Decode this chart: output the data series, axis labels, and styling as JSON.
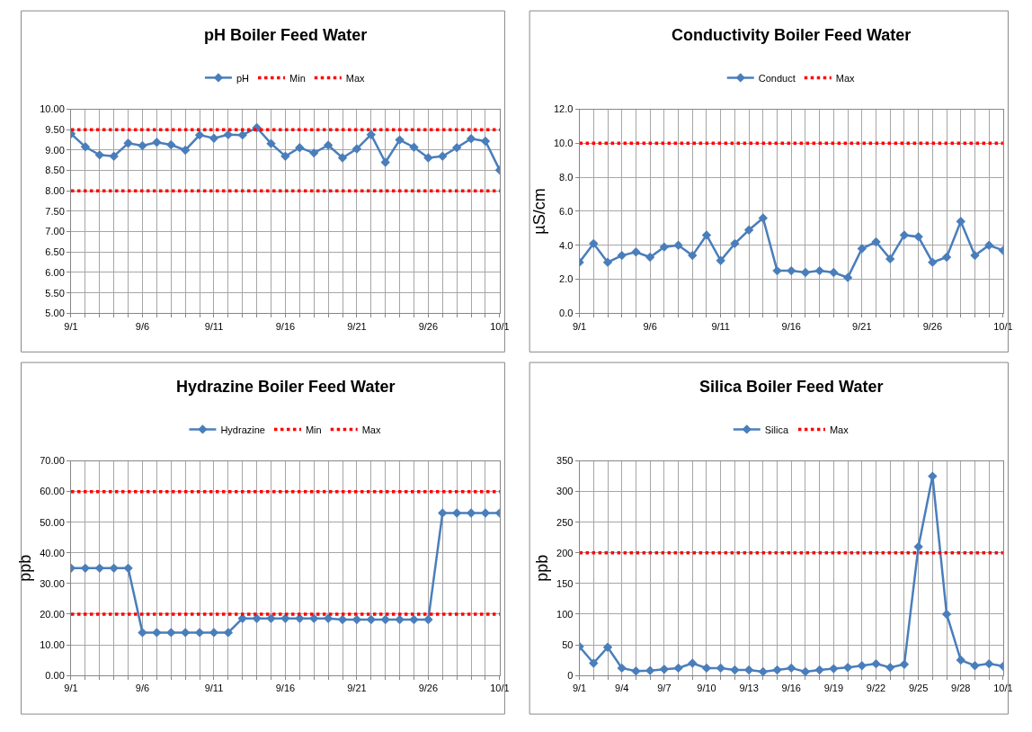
{
  "chart_data": [
    {
      "type": "line",
      "title": "pH Boiler Feed Water",
      "grid": true,
      "legend": "top",
      "marker": "diamond",
      "line_style": "solid",
      "x": [
        "--09-01",
        "--09-02",
        "--09-03",
        "--09-04",
        "--09-05",
        "--09-06",
        "--09-07",
        "--09-08",
        "--09-09",
        "--09-10",
        "--09-11",
        "--09-12",
        "--09-13",
        "--09-14",
        "--09-15",
        "--09-16",
        "--09-17",
        "--09-18",
        "--09-19",
        "--09-20",
        "--09-21",
        "--09-22",
        "--09-23",
        "--09-24",
        "--09-25",
        "--09-26",
        "--09-27",
        "--09-28",
        "--09-29",
        "--09-30",
        "--10-01"
      ],
      "xlim": [
        "--09-01",
        "--10-01"
      ],
      "xticks": [
        {
          "value": "--09-01",
          "label": "9/1"
        },
        {
          "value": "--09-02",
          "label": null
        },
        {
          "value": "--09-03",
          "label": null
        },
        {
          "value": "--09-04",
          "label": null
        },
        {
          "value": "--09-05",
          "label": null
        },
        {
          "value": "--09-06",
          "label": "9/6"
        },
        {
          "value": "--09-07",
          "label": null
        },
        {
          "value": "--09-08",
          "label": null
        },
        {
          "value": "--09-09",
          "label": null
        },
        {
          "value": "--09-10",
          "label": null
        },
        {
          "value": "--09-11",
          "label": "9/11"
        },
        {
          "value": "--09-12",
          "label": null
        },
        {
          "value": "--09-13",
          "label": null
        },
        {
          "value": "--09-14",
          "label": null
        },
        {
          "value": "--09-15",
          "label": null
        },
        {
          "value": "--09-16",
          "label": "9/16"
        },
        {
          "value": "--09-17",
          "label": null
        },
        {
          "value": "--09-18",
          "label": null
        },
        {
          "value": "--09-19",
          "label": null
        },
        {
          "value": "--09-20",
          "label": null
        },
        {
          "value": "--09-21",
          "label": "9/21"
        },
        {
          "value": "--09-22",
          "label": null
        },
        {
          "value": "--09-23",
          "label": null
        },
        {
          "value": "--09-24",
          "label": null
        },
        {
          "value": "--09-25",
          "label": null
        },
        {
          "value": "--09-26",
          "label": "9/26"
        },
        {
          "value": "--09-27",
          "label": null
        },
        {
          "value": "--09-28",
          "label": null
        },
        {
          "value": "--09-29",
          "label": null
        },
        {
          "value": "--09-30",
          "label": null
        },
        {
          "value": "--10-01",
          "label": "10/1"
        }
      ],
      "ylim": [
        5,
        10
      ],
      "yticks": [
        {
          "value": 5,
          "label": "5.00"
        },
        {
          "value": 5.5,
          "label": "5.50"
        },
        {
          "value": 6,
          "label": "6.00"
        },
        {
          "value": 6.5,
          "label": "6.50"
        },
        {
          "value": 7,
          "label": "7.00"
        },
        {
          "value": 7.5,
          "label": "7.50"
        },
        {
          "value": 8,
          "label": "8.00"
        },
        {
          "value": 8.5,
          "label": "8.50"
        },
        {
          "value": 9,
          "label": "9.00"
        },
        {
          "value": 9.5,
          "label": "9.50"
        },
        {
          "value": 10,
          "label": "10.00"
        }
      ],
      "series": [
        {
          "name": "pH",
          "color": "#4a7ebb",
          "values": [
            9.4,
            9.08,
            8.88,
            8.85,
            9.17,
            9.11,
            9.19,
            9.13,
            9.0,
            9.37,
            9.29,
            9.38,
            9.37,
            9.55,
            9.16,
            8.85,
            9.06,
            8.93,
            9.12,
            8.81,
            9.03,
            9.38,
            8.7,
            9.25,
            9.07,
            8.81,
            8.85,
            9.06,
            9.28,
            9.22,
            8.51
          ]
        },
        {
          "name": "Min",
          "color": "#ff0000",
          "marker": "none",
          "line_style": "dotted",
          "values": [
            8,
            8,
            8,
            8,
            8,
            8,
            8,
            8,
            8,
            8,
            8,
            8,
            8,
            8,
            8,
            8,
            8,
            8,
            8,
            8,
            8,
            8,
            8,
            8,
            8,
            8,
            8,
            8,
            8,
            8,
            8
          ]
        },
        {
          "name": "Max",
          "color": "#ff0000",
          "marker": "none",
          "line_style": "dotted",
          "values": [
            9.5,
            9.5,
            9.5,
            9.5,
            9.5,
            9.5,
            9.5,
            9.5,
            9.5,
            9.5,
            9.5,
            9.5,
            9.5,
            9.5,
            9.5,
            9.5,
            9.5,
            9.5,
            9.5,
            9.5,
            9.5,
            9.5,
            9.5,
            9.5,
            9.5,
            9.5,
            9.5,
            9.5,
            9.5,
            9.5,
            9.5
          ]
        }
      ]
    },
    {
      "type": "line",
      "title": "Conductivity Boiler Feed Water",
      "ylabel": "µS/cm",
      "grid": true,
      "legend": "top",
      "marker": "diamond",
      "line_style": "solid",
      "x": [
        "--09-01",
        "--09-02",
        "--09-03",
        "--09-04",
        "--09-05",
        "--09-06",
        "--09-07",
        "--09-08",
        "--09-09",
        "--09-10",
        "--09-11",
        "--09-12",
        "--09-13",
        "--09-14",
        "--09-15",
        "--09-16",
        "--09-17",
        "--09-18",
        "--09-19",
        "--09-20",
        "--09-21",
        "--09-22",
        "--09-23",
        "--09-24",
        "--09-25",
        "--09-26",
        "--09-27",
        "--09-28",
        "--09-29",
        "--09-30",
        "--10-01"
      ],
      "xlim": [
        "--09-01",
        "--10-01"
      ],
      "xticks": [
        {
          "value": "--09-01",
          "label": "9/1"
        },
        {
          "value": "--09-02",
          "label": null
        },
        {
          "value": "--09-03",
          "label": null
        },
        {
          "value": "--09-04",
          "label": null
        },
        {
          "value": "--09-05",
          "label": null
        },
        {
          "value": "--09-06",
          "label": "9/6"
        },
        {
          "value": "--09-07",
          "label": null
        },
        {
          "value": "--09-08",
          "label": null
        },
        {
          "value": "--09-09",
          "label": null
        },
        {
          "value": "--09-10",
          "label": null
        },
        {
          "value": "--09-11",
          "label": "9/11"
        },
        {
          "value": "--09-12",
          "label": null
        },
        {
          "value": "--09-13",
          "label": null
        },
        {
          "value": "--09-14",
          "label": null
        },
        {
          "value": "--09-15",
          "label": null
        },
        {
          "value": "--09-16",
          "label": "9/16"
        },
        {
          "value": "--09-17",
          "label": null
        },
        {
          "value": "--09-18",
          "label": null
        },
        {
          "value": "--09-19",
          "label": null
        },
        {
          "value": "--09-20",
          "label": null
        },
        {
          "value": "--09-21",
          "label": "9/21"
        },
        {
          "value": "--09-22",
          "label": null
        },
        {
          "value": "--09-23",
          "label": null
        },
        {
          "value": "--09-24",
          "label": null
        },
        {
          "value": "--09-25",
          "label": null
        },
        {
          "value": "--09-26",
          "label": "9/26"
        },
        {
          "value": "--09-27",
          "label": null
        },
        {
          "value": "--09-28",
          "label": null
        },
        {
          "value": "--09-29",
          "label": null
        },
        {
          "value": "--09-30",
          "label": null
        },
        {
          "value": "--10-01",
          "label": "10/1"
        }
      ],
      "ylim": [
        0,
        12
      ],
      "yticks": [
        {
          "value": 0,
          "label": "0.0"
        },
        {
          "value": 2,
          "label": "2.0"
        },
        {
          "value": 4,
          "label": "4.0"
        },
        {
          "value": 6,
          "label": "6.0"
        },
        {
          "value": 8,
          "label": "8.0"
        },
        {
          "value": 10,
          "label": "10.0"
        },
        {
          "value": 12,
          "label": "12.0"
        }
      ],
      "series": [
        {
          "name": "Conduct",
          "color": "#4a7ebb",
          "values": [
            3.0,
            4.1,
            3.0,
            3.4,
            3.6,
            3.3,
            3.9,
            4.0,
            3.4,
            4.6,
            3.1,
            4.1,
            4.9,
            5.6,
            2.5,
            2.5,
            2.4,
            2.5,
            2.4,
            2.1,
            3.8,
            4.2,
            3.2,
            4.6,
            4.5,
            3.0,
            3.3,
            5.4,
            3.4,
            4.0,
            3.7
          ]
        },
        {
          "name": "Max",
          "color": "#ff0000",
          "marker": "none",
          "line_style": "dotted",
          "values": [
            10,
            10,
            10,
            10,
            10,
            10,
            10,
            10,
            10,
            10,
            10,
            10,
            10,
            10,
            10,
            10,
            10,
            10,
            10,
            10,
            10,
            10,
            10,
            10,
            10,
            10,
            10,
            10,
            10,
            10,
            10
          ]
        }
      ]
    },
    {
      "type": "line",
      "title": "Hydrazine Boiler Feed Water",
      "ylabel": "ppb",
      "grid": true,
      "legend": "top",
      "marker": "diamond",
      "line_style": "solid",
      "x": [
        "--09-01",
        "--09-02",
        "--09-03",
        "--09-04",
        "--09-05",
        "--09-06",
        "--09-07",
        "--09-08",
        "--09-09",
        "--09-10",
        "--09-11",
        "--09-12",
        "--09-13",
        "--09-14",
        "--09-15",
        "--09-16",
        "--09-17",
        "--09-18",
        "--09-19",
        "--09-20",
        "--09-21",
        "--09-22",
        "--09-23",
        "--09-24",
        "--09-25",
        "--09-26",
        "--09-27",
        "--09-28",
        "--09-29",
        "--09-30",
        "--10-01"
      ],
      "xlim": [
        "--09-01",
        "--10-01"
      ],
      "xticks": [
        {
          "value": "--09-01",
          "label": "9/1"
        },
        {
          "value": "--09-02",
          "label": null
        },
        {
          "value": "--09-03",
          "label": null
        },
        {
          "value": "--09-04",
          "label": null
        },
        {
          "value": "--09-05",
          "label": null
        },
        {
          "value": "--09-06",
          "label": "9/6"
        },
        {
          "value": "--09-07",
          "label": null
        },
        {
          "value": "--09-08",
          "label": null
        },
        {
          "value": "--09-09",
          "label": null
        },
        {
          "value": "--09-10",
          "label": null
        },
        {
          "value": "--09-11",
          "label": "9/11"
        },
        {
          "value": "--09-12",
          "label": null
        },
        {
          "value": "--09-13",
          "label": null
        },
        {
          "value": "--09-14",
          "label": null
        },
        {
          "value": "--09-15",
          "label": null
        },
        {
          "value": "--09-16",
          "label": "9/16"
        },
        {
          "value": "--09-17",
          "label": null
        },
        {
          "value": "--09-18",
          "label": null
        },
        {
          "value": "--09-19",
          "label": null
        },
        {
          "value": "--09-20",
          "label": null
        },
        {
          "value": "--09-21",
          "label": "9/21"
        },
        {
          "value": "--09-22",
          "label": null
        },
        {
          "value": "--09-23",
          "label": null
        },
        {
          "value": "--09-24",
          "label": null
        },
        {
          "value": "--09-25",
          "label": null
        },
        {
          "value": "--09-26",
          "label": "9/26"
        },
        {
          "value": "--09-27",
          "label": null
        },
        {
          "value": "--09-28",
          "label": null
        },
        {
          "value": "--09-29",
          "label": null
        },
        {
          "value": "--09-30",
          "label": null
        },
        {
          "value": "--10-01",
          "label": "10/1"
        }
      ],
      "ylim": [
        0,
        70
      ],
      "yticks": [
        {
          "value": 0,
          "label": "0.00"
        },
        {
          "value": 10,
          "label": "10.00"
        },
        {
          "value": 20,
          "label": "20.00"
        },
        {
          "value": 30,
          "label": "30.00"
        },
        {
          "value": 40,
          "label": "40.00"
        },
        {
          "value": 50,
          "label": "50.00"
        },
        {
          "value": 60,
          "label": "60.00"
        },
        {
          "value": 70,
          "label": "70.00"
        }
      ],
      "series": [
        {
          "name": "Hydrazine",
          "color": "#4a7ebb",
          "values": [
            35,
            35,
            35,
            35,
            35,
            14,
            14,
            14,
            14,
            14,
            14,
            14,
            18.6,
            18.6,
            18.6,
            18.6,
            18.6,
            18.6,
            18.6,
            18.2,
            18.2,
            18.2,
            18.2,
            18.2,
            18.2,
            18.2,
            53,
            53,
            53,
            53,
            53
          ]
        },
        {
          "name": "Min",
          "color": "#ff0000",
          "marker": "none",
          "line_style": "dotted",
          "values": [
            20,
            20,
            20,
            20,
            20,
            20,
            20,
            20,
            20,
            20,
            20,
            20,
            20,
            20,
            20,
            20,
            20,
            20,
            20,
            20,
            20,
            20,
            20,
            20,
            20,
            20,
            20,
            20,
            20,
            20,
            20
          ]
        },
        {
          "name": "Max",
          "color": "#ff0000",
          "marker": "none",
          "line_style": "dotted",
          "values": [
            60,
            60,
            60,
            60,
            60,
            60,
            60,
            60,
            60,
            60,
            60,
            60,
            60,
            60,
            60,
            60,
            60,
            60,
            60,
            60,
            60,
            60,
            60,
            60,
            60,
            60,
            60,
            60,
            60,
            60,
            60
          ]
        }
      ]
    },
    {
      "type": "line",
      "title": "Silica Boiler Feed Water",
      "ylabel": "ppb",
      "grid": true,
      "legend": "top",
      "marker": "diamond",
      "line_style": "solid",
      "x": [
        "--09-01",
        "--09-02",
        "--09-03",
        "--09-04",
        "--09-05",
        "--09-06",
        "--09-07",
        "--09-08",
        "--09-09",
        "--09-10",
        "--09-11",
        "--09-12",
        "--09-13",
        "--09-14",
        "--09-15",
        "--09-16",
        "--09-17",
        "--09-18",
        "--09-19",
        "--09-20",
        "--09-21",
        "--09-22",
        "--09-23",
        "--09-24",
        "--09-25",
        "--09-26",
        "--09-27",
        "--09-28",
        "--09-29",
        "--09-30",
        "--10-01"
      ],
      "xlim": [
        "--09-01",
        "--10-01"
      ],
      "xticks": [
        {
          "value": "--09-01",
          "label": "9/1"
        },
        {
          "value": "--09-02",
          "label": null
        },
        {
          "value": "--09-03",
          "label": null
        },
        {
          "value": "--09-04",
          "label": "9/4"
        },
        {
          "value": "--09-05",
          "label": null
        },
        {
          "value": "--09-06",
          "label": null
        },
        {
          "value": "--09-07",
          "label": "9/7"
        },
        {
          "value": "--09-08",
          "label": null
        },
        {
          "value": "--09-09",
          "label": null
        },
        {
          "value": "--09-10",
          "label": "9/10"
        },
        {
          "value": "--09-11",
          "label": null
        },
        {
          "value": "--09-12",
          "label": null
        },
        {
          "value": "--09-13",
          "label": "9/13"
        },
        {
          "value": "--09-14",
          "label": null
        },
        {
          "value": "--09-15",
          "label": null
        },
        {
          "value": "--09-16",
          "label": "9/16"
        },
        {
          "value": "--09-17",
          "label": null
        },
        {
          "value": "--09-18",
          "label": null
        },
        {
          "value": "--09-19",
          "label": "9/19"
        },
        {
          "value": "--09-20",
          "label": null
        },
        {
          "value": "--09-21",
          "label": null
        },
        {
          "value": "--09-22",
          "label": "9/22"
        },
        {
          "value": "--09-23",
          "label": null
        },
        {
          "value": "--09-24",
          "label": null
        },
        {
          "value": "--09-25",
          "label": "9/25"
        },
        {
          "value": "--09-26",
          "label": null
        },
        {
          "value": "--09-27",
          "label": null
        },
        {
          "value": "--09-28",
          "label": "9/28"
        },
        {
          "value": "--09-29",
          "label": null
        },
        {
          "value": "--09-30",
          "label": null
        },
        {
          "value": "--10-01",
          "label": "10/1"
        }
      ],
      "ylim": [
        0,
        350
      ],
      "yticks": [
        0,
        50,
        100,
        150,
        200,
        250,
        300,
        350
      ],
      "series": [
        {
          "name": "Silica",
          "color": "#4a7ebb",
          "values": [
            47,
            20,
            46,
            12,
            7,
            8,
            10,
            12,
            20,
            12,
            12,
            9,
            9,
            6,
            9,
            12,
            6,
            9,
            11,
            13,
            16,
            19,
            13,
            18,
            210,
            325,
            100,
            25,
            16,
            19,
            15
          ]
        },
        {
          "name": "Max",
          "color": "#ff0000",
          "marker": "none",
          "line_style": "dotted",
          "values": [
            200,
            200,
            200,
            200,
            200,
            200,
            200,
            200,
            200,
            200,
            200,
            200,
            200,
            200,
            200,
            200,
            200,
            200,
            200,
            200,
            200,
            200,
            200,
            200,
            200,
            200,
            200,
            200,
            200,
            200,
            200
          ]
        }
      ]
    }
  ]
}
